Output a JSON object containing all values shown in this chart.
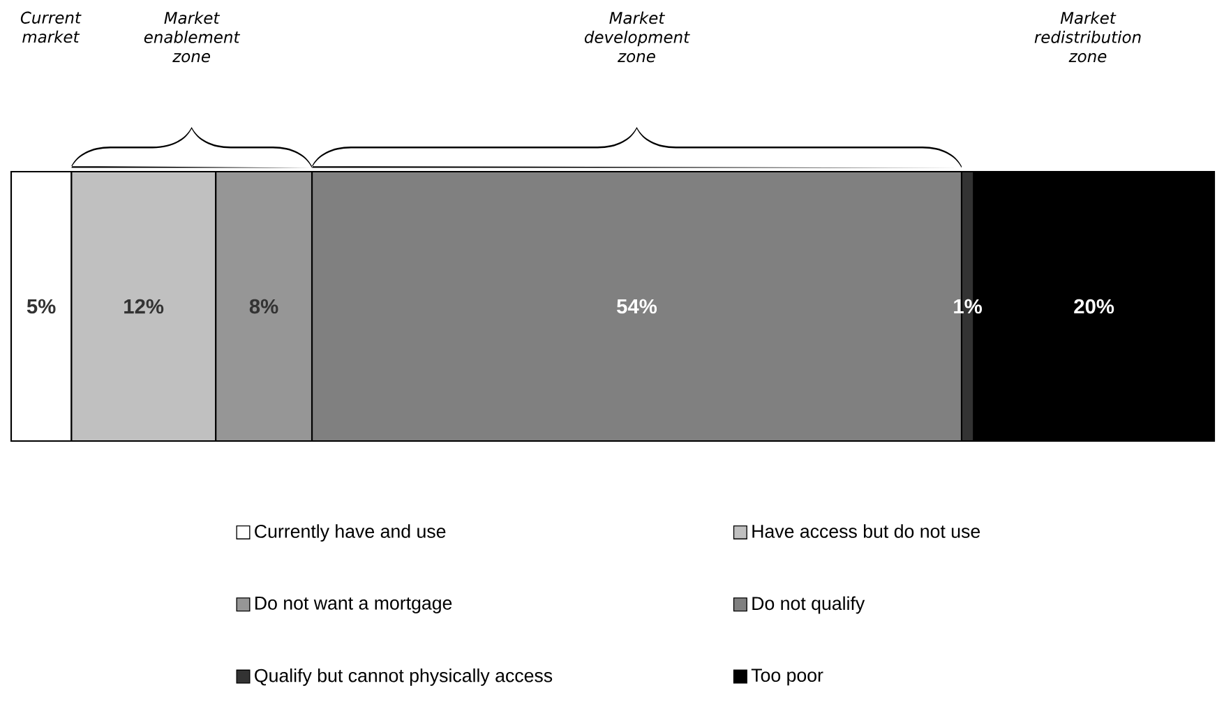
{
  "chart_data": {
    "type": "bar",
    "orientation": "horizontal",
    "stacked": true,
    "categories": [
      null
    ],
    "legend": "bottom",
    "annotations": [
      "Current market",
      "Market enablement zone",
      "Market development zone",
      "Market redistribution zone"
    ],
    "series": [
      {
        "name": "Currently have and use",
        "color": "#ffffff",
        "values": [
          5
        ],
        "value_labels": [
          "5%"
        ]
      },
      {
        "name": "Have access but do not use",
        "color": "#c0c0c0",
        "values": [
          12
        ],
        "value_labels": [
          "12%"
        ]
      },
      {
        "name": "Do not want a mortgage",
        "color": "#969696",
        "values": [
          8
        ],
        "value_labels": [
          "8%"
        ]
      },
      {
        "name": "Do not qualify",
        "color": "#808080",
        "values": [
          54
        ],
        "value_labels": [
          "54%"
        ]
      },
      {
        "name": "Qualify but cannot physically access",
        "color": "#333333",
        "values": [
          1
        ],
        "value_labels": [
          "1%"
        ]
      },
      {
        "name": "Too poor",
        "color": "#000000",
        "values": [
          20
        ],
        "value_labels": [
          "20%"
        ]
      }
    ]
  }
}
